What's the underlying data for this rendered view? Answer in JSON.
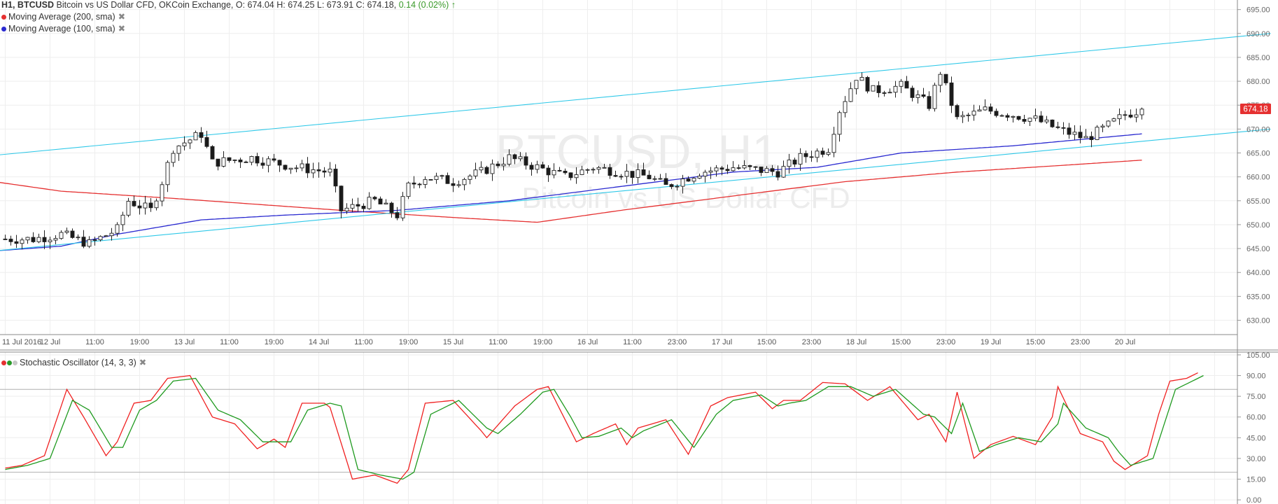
{
  "header": {
    "symbol": "H1, BTCUSD",
    "description": "Bitcoin vs US Dollar CFD, OKCoin Exchange,",
    "ohlc": "O: 674.04 H: 674.25 L: 673.91 C: 674.18,",
    "change": "0.14 (0.02%)",
    "change_arrow": "↑"
  },
  "indicators": {
    "ma200": {
      "label": "Moving Average (200, sma)",
      "color": "#e53030"
    },
    "ma100": {
      "label": "Moving Average (100, sma)",
      "color": "#2a2ad0"
    },
    "close_label": "✖"
  },
  "watermark": {
    "title": "BTCUSD, H1",
    "subtitle": "Bitcoin vs US Dollar CFD"
  },
  "price_badge": "674.18",
  "stoch": {
    "label": "Stochastic Oscillator (14, 3, 3)",
    "dot_colors": [
      "#e53030",
      "#2a9a2a",
      "#c8c8c8"
    ]
  },
  "colors": {
    "channel": "#2ec8e8",
    "k_line": "#f02020",
    "d_line": "#1f9a1f",
    "badge": "#e53030",
    "grid": "#eeeeee"
  },
  "chart_data": [
    {
      "type": "candlestick",
      "y_ticks": [
        "630.00",
        "635.00",
        "640.00",
        "645.00",
        "650.00",
        "655.00",
        "660.00",
        "665.00",
        "670.00",
        "675.00",
        "680.00",
        "685.00",
        "690.00",
        "695.00"
      ],
      "ylim": [
        627,
        697
      ],
      "x_ticks": [
        {
          "i": 0,
          "label": "11 Jul 2016"
        },
        {
          "i": 8,
          "label": "12 Jul"
        },
        {
          "i": 16,
          "label": "11:00"
        },
        {
          "i": 24,
          "label": "19:00"
        },
        {
          "i": 32,
          "label": "13 Jul"
        },
        {
          "i": 40,
          "label": "11:00"
        },
        {
          "i": 48,
          "label": "19:00"
        },
        {
          "i": 56,
          "label": "14 Jul"
        },
        {
          "i": 64,
          "label": "11:00"
        },
        {
          "i": 72,
          "label": "19:00"
        },
        {
          "i": 80,
          "label": "15 Jul"
        },
        {
          "i": 88,
          "label": "11:00"
        },
        {
          "i": 96,
          "label": "19:00"
        },
        {
          "i": 104,
          "label": "16 Jul"
        },
        {
          "i": 112,
          "label": "11:00"
        },
        {
          "i": 120,
          "label": "23:00"
        },
        {
          "i": 128,
          "label": "17 Jul"
        },
        {
          "i": 136,
          "label": "15:00"
        },
        {
          "i": 144,
          "label": "23:00"
        },
        {
          "i": 152,
          "label": "18 Jul"
        },
        {
          "i": 160,
          "label": "15:00"
        },
        {
          "i": 168,
          "label": "23:00"
        },
        {
          "i": 176,
          "label": "19 Jul"
        },
        {
          "i": 184,
          "label": "15:00"
        },
        {
          "i": 192,
          "label": "23:00"
        },
        {
          "i": 200,
          "label": "20 Jul"
        }
      ],
      "knots": [
        [
          0,
          647
        ],
        [
          5,
          647
        ],
        [
          10,
          648
        ],
        [
          15,
          646
        ],
        [
          20,
          649
        ],
        [
          22,
          655
        ],
        [
          26,
          653
        ],
        [
          28,
          659
        ],
        [
          30,
          666
        ],
        [
          35,
          669
        ],
        [
          37,
          663
        ],
        [
          44,
          664
        ],
        [
          52,
          662
        ],
        [
          58,
          661
        ],
        [
          60,
          653
        ],
        [
          66,
          655
        ],
        [
          70,
          652
        ],
        [
          72,
          658
        ],
        [
          75,
          660
        ],
        [
          80,
          659
        ],
        [
          85,
          661
        ],
        [
          90,
          664
        ],
        [
          95,
          662
        ],
        [
          100,
          660
        ],
        [
          105,
          662
        ],
        [
          110,
          661
        ],
        [
          115,
          660
        ],
        [
          118,
          658
        ],
        [
          124,
          661
        ],
        [
          130,
          662
        ],
        [
          138,
          661
        ],
        [
          142,
          664
        ],
        [
          147,
          666
        ],
        [
          149,
          674
        ],
        [
          152,
          681
        ],
        [
          155,
          678
        ],
        [
          160,
          679
        ],
        [
          165,
          675
        ],
        [
          167,
          682
        ],
        [
          170,
          672
        ],
        [
          175,
          674
        ],
        [
          180,
          673
        ],
        [
          184,
          672
        ],
        [
          188,
          670
        ],
        [
          193,
          668
        ],
        [
          196,
          670
        ],
        [
          200,
          673
        ],
        [
          203,
          674.18
        ]
      ],
      "n_candles": 204,
      "channel_upper": {
        "start": [
          -2,
          664.5
        ],
        "end": [
          226,
          690
        ]
      },
      "channel_lower": {
        "start": [
          -2,
          644.5
        ],
        "end": [
          226,
          670
        ]
      },
      "ma200": [
        [
          -2,
          659
        ],
        [
          10,
          657
        ],
        [
          30,
          655.5
        ],
        [
          60,
          653
        ],
        [
          80,
          651.5
        ],
        [
          95,
          650.5
        ],
        [
          110,
          653
        ],
        [
          130,
          656
        ],
        [
          150,
          659
        ],
        [
          170,
          661
        ],
        [
          190,
          662.5
        ],
        [
          203,
          663.5
        ]
      ],
      "ma100": [
        [
          -2,
          644.5
        ],
        [
          10,
          645.5
        ],
        [
          20,
          648
        ],
        [
          35,
          651
        ],
        [
          50,
          652
        ],
        [
          70,
          653
        ],
        [
          90,
          655
        ],
        [
          110,
          658
        ],
        [
          130,
          661
        ],
        [
          145,
          662
        ],
        [
          160,
          665
        ],
        [
          180,
          666.5
        ],
        [
          203,
          669
        ]
      ]
    },
    {
      "type": "line",
      "title": "Stochastic Oscillator (14, 3, 3)",
      "y_ticks": [
        "0.00",
        "15.00",
        "30.00",
        "45.00",
        "60.00",
        "75.00",
        "90.00",
        "105.00"
      ],
      "ylim": [
        -3,
        107
      ],
      "series": [
        {
          "color": "#f02020",
          "knots": [
            [
              0,
              23
            ],
            [
              3,
              25
            ],
            [
              7,
              32
            ],
            [
              11,
              80
            ],
            [
              14,
              60
            ],
            [
              18,
              32
            ],
            [
              20,
              42
            ],
            [
              23,
              70
            ],
            [
              26,
              72
            ],
            [
              29,
              88
            ],
            [
              33,
              90
            ],
            [
              37,
              60
            ],
            [
              41,
              55
            ],
            [
              45,
              37
            ],
            [
              48,
              44
            ],
            [
              50,
              38
            ],
            [
              53,
              70
            ],
            [
              57,
              70
            ],
            [
              58,
              67
            ],
            [
              62,
              15
            ],
            [
              66,
              18
            ],
            [
              70,
              12
            ],
            [
              72,
              22
            ],
            [
              75,
              70
            ],
            [
              80,
              72
            ],
            [
              85,
              50
            ],
            [
              86,
              45
            ],
            [
              91,
              68
            ],
            [
              95,
              80
            ],
            [
              97,
              82
            ],
            [
              100,
              58
            ],
            [
              102,
              42
            ],
            [
              105,
              48
            ],
            [
              109,
              55
            ],
            [
              111,
              40
            ],
            [
              113,
              52
            ],
            [
              118,
              58
            ],
            [
              122,
              33
            ],
            [
              126,
              68
            ],
            [
              129,
              74
            ],
            [
              134,
              78
            ],
            [
              137,
              66
            ],
            [
              139,
              72
            ],
            [
              142,
              72
            ],
            [
              146,
              85
            ],
            [
              150,
              84
            ],
            [
              154,
              72
            ],
            [
              158,
              82
            ],
            [
              163,
              58
            ],
            [
              165,
              62
            ],
            [
              168,
              42
            ],
            [
              170,
              78
            ],
            [
              173,
              30
            ],
            [
              176,
              40
            ],
            [
              180,
              46
            ],
            [
              184,
              40
            ],
            [
              187,
              60
            ],
            [
              188,
              82
            ],
            [
              192,
              48
            ],
            [
              196,
              42
            ],
            [
              198,
              28
            ],
            [
              200,
              22
            ],
            [
              204,
              32
            ],
            [
              206,
              62
            ],
            [
              208,
              86
            ],
            [
              211,
              88
            ],
            [
              213,
              92
            ]
          ]
        },
        {
          "color": "#1f9a1f",
          "knots": [
            [
              0,
              22
            ],
            [
              4,
              25
            ],
            [
              8,
              30
            ],
            [
              12,
              72
            ],
            [
              15,
              65
            ],
            [
              19,
              38
            ],
            [
              21,
              38
            ],
            [
              24,
              65
            ],
            [
              27,
              72
            ],
            [
              30,
              86
            ],
            [
              34,
              88
            ],
            [
              38,
              65
            ],
            [
              42,
              58
            ],
            [
              46,
              42
            ],
            [
              49,
              42
            ],
            [
              51,
              42
            ],
            [
              54,
              65
            ],
            [
              58,
              70
            ],
            [
              60,
              68
            ],
            [
              63,
              22
            ],
            [
              67,
              18
            ],
            [
              71,
              15
            ],
            [
              73,
              20
            ],
            [
              76,
              62
            ],
            [
              81,
              72
            ],
            [
              86,
              52
            ],
            [
              88,
              48
            ],
            [
              92,
              62
            ],
            [
              96,
              78
            ],
            [
              98,
              80
            ],
            [
              101,
              60
            ],
            [
              103,
              45
            ],
            [
              106,
              46
            ],
            [
              110,
              52
            ],
            [
              112,
              45
            ],
            [
              114,
              50
            ],
            [
              119,
              58
            ],
            [
              123,
              38
            ],
            [
              127,
              62
            ],
            [
              130,
              72
            ],
            [
              135,
              76
            ],
            [
              138,
              68
            ],
            [
              140,
              70
            ],
            [
              143,
              72
            ],
            [
              147,
              82
            ],
            [
              151,
              82
            ],
            [
              155,
              75
            ],
            [
              159,
              80
            ],
            [
              164,
              62
            ],
            [
              166,
              60
            ],
            [
              169,
              48
            ],
            [
              171,
              70
            ],
            [
              174,
              35
            ],
            [
              177,
              40
            ],
            [
              181,
              45
            ],
            [
              185,
              42
            ],
            [
              188,
              55
            ],
            [
              189,
              70
            ],
            [
              193,
              52
            ],
            [
              197,
              45
            ],
            [
              199,
              34
            ],
            [
              201,
              25
            ],
            [
              205,
              30
            ],
            [
              207,
              55
            ],
            [
              209,
              80
            ],
            [
              212,
              86
            ],
            [
              214,
              90
            ]
          ]
        }
      ]
    }
  ]
}
